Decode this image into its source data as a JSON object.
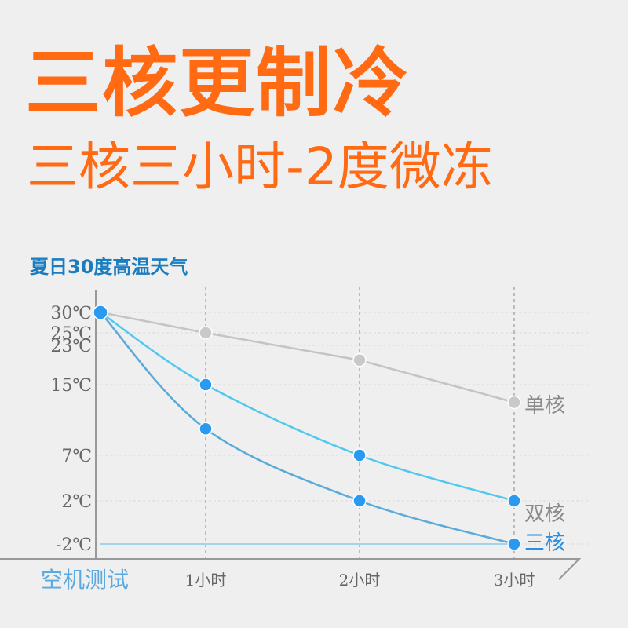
{
  "headline": "三核更制冷",
  "subheadline": "三核三小时-2度微冻",
  "chart_data": {
    "type": "line",
    "title": "夏日30度高温天气",
    "xlabel": "空机测试",
    "categories": [
      "",
      "1小时",
      "2小时",
      "3小时"
    ],
    "yticks": [
      {
        "label": "30℃",
        "value": 30
      },
      {
        "label": "25℃",
        "value": 25
      },
      {
        "label": "23℃",
        "value": 23
      },
      {
        "label": "15℃",
        "value": 15
      },
      {
        "label": "7℃",
        "value": 7
      },
      {
        "label": "2℃",
        "value": 2
      },
      {
        "label": "-2℃",
        "value": -2
      }
    ],
    "ylim": [
      -2,
      30
    ],
    "series": [
      {
        "name": "单核",
        "values": [
          30,
          25,
          20,
          13
        ],
        "color": "#c4c4c4",
        "label_color": "#8a8a8a"
      },
      {
        "name": "双核",
        "values": [
          30,
          15,
          7,
          2
        ],
        "color": "#52c8ee",
        "label_color": "#8a8a8a"
      },
      {
        "name": "三核",
        "values": [
          30,
          10,
          2,
          -2
        ],
        "color": "#5aabd9",
        "label_color": "#2a8fe0"
      }
    ],
    "marker_color_active": "#2a9af0",
    "baseline_color": "#9fd4ec",
    "grid_color": "#d8d8d8",
    "axis_color": "#999999"
  }
}
